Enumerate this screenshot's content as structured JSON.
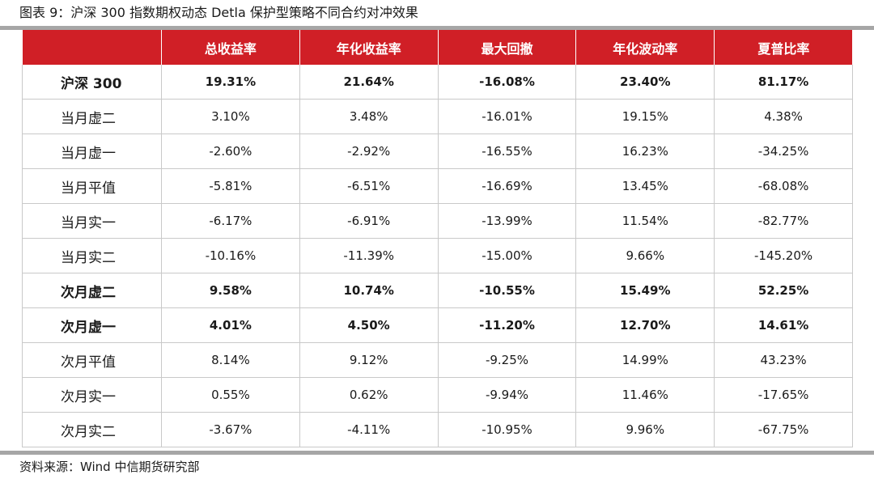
{
  "title": "图表 9：沪深 300 指数期权动态 Detla 保护型策略不同合约对冲效果",
  "columns": [
    "",
    "总收益率",
    "年化收益率",
    "最大回撤",
    "年化波动率",
    "夏普比率"
  ],
  "rows": [
    {
      "name": "沪深 300",
      "bold": true,
      "cells": [
        "19.31%",
        "21.64%",
        "-16.08%",
        "23.40%",
        "81.17%"
      ]
    },
    {
      "name": "当月虚二",
      "bold": false,
      "cells": [
        "3.10%",
        "3.48%",
        "-16.01%",
        "19.15%",
        "4.38%"
      ]
    },
    {
      "name": "当月虚一",
      "bold": false,
      "cells": [
        "-2.60%",
        "-2.92%",
        "-16.55%",
        "16.23%",
        "-34.25%"
      ]
    },
    {
      "name": "当月平值",
      "bold": false,
      "cells": [
        "-5.81%",
        "-6.51%",
        "-16.69%",
        "13.45%",
        "-68.08%"
      ]
    },
    {
      "name": "当月实一",
      "bold": false,
      "cells": [
        "-6.17%",
        "-6.91%",
        "-13.99%",
        "11.54%",
        "-82.77%"
      ]
    },
    {
      "name": "当月实二",
      "bold": false,
      "cells": [
        "-10.16%",
        "-11.39%",
        "-15.00%",
        "9.66%",
        "-145.20%"
      ]
    },
    {
      "name": "次月虚二",
      "bold": true,
      "cells": [
        "9.58%",
        "10.74%",
        "-10.55%",
        "15.49%",
        "52.25%"
      ]
    },
    {
      "name": "次月虚一",
      "bold": true,
      "cells": [
        "4.01%",
        "4.50%",
        "-11.20%",
        "12.70%",
        "14.61%"
      ]
    },
    {
      "name": "次月平值",
      "bold": false,
      "cells": [
        "8.14%",
        "9.12%",
        "-9.25%",
        "14.99%",
        "43.23%"
      ]
    },
    {
      "name": "次月实一",
      "bold": false,
      "cells": [
        "0.55%",
        "0.62%",
        "-9.94%",
        "11.46%",
        "-17.65%"
      ]
    },
    {
      "name": "次月实二",
      "bold": false,
      "cells": [
        "-3.67%",
        "-4.11%",
        "-10.95%",
        "9.96%",
        "-67.75%"
      ]
    }
  ],
  "source": "资料来源：Wind 中信期货研究部",
  "colors": {
    "header_bg": "#d01f26",
    "header_text": "#ffffff",
    "rule": "#a6a6a6",
    "grid": "#c9c9c9"
  }
}
